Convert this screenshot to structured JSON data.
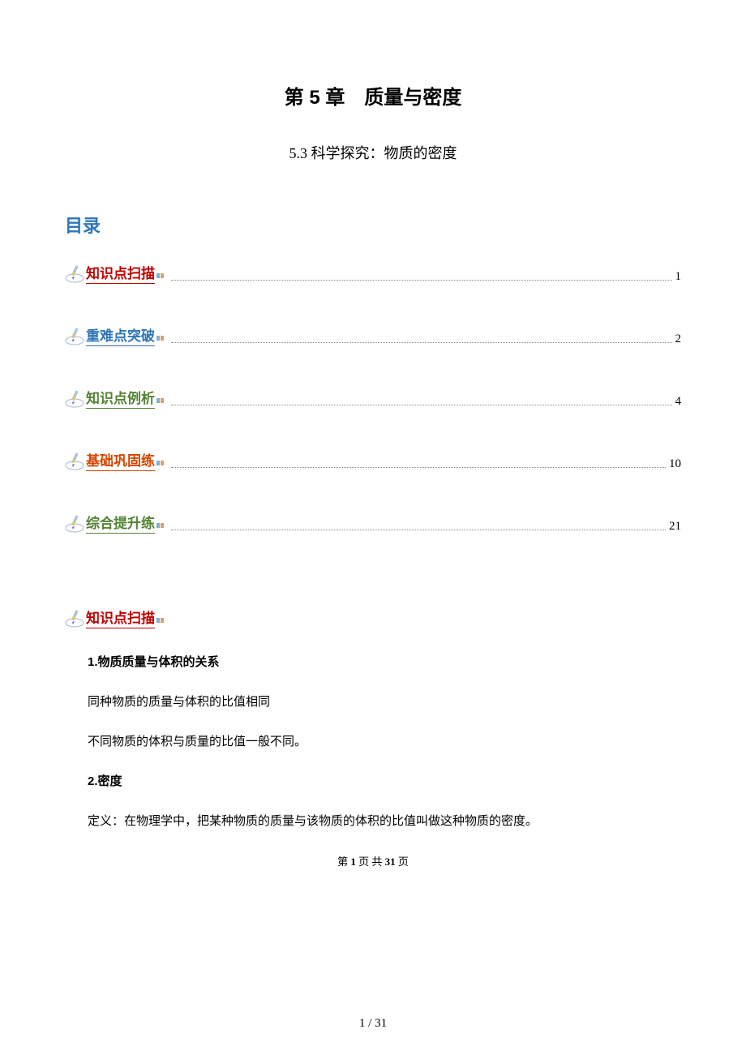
{
  "chapter_title": "第 5 章　质量与密度",
  "section_subtitle": "5.3 科学探究：物质的密度",
  "toc_header": "目录",
  "toc": [
    {
      "label": "知识点扫描",
      "page": "1",
      "color": "label-red"
    },
    {
      "label": "重难点突破",
      "page": "2",
      "color": "label-blue"
    },
    {
      "label": "知识点例析",
      "page": "4",
      "color": "label-green"
    },
    {
      "label": "基础巩固练",
      "page": "10",
      "color": "label-orange"
    },
    {
      "label": "综合提升练",
      "page": "21",
      "color": "label-green"
    }
  ],
  "content_heading": {
    "label": "知识点扫描",
    "color": "label-red"
  },
  "paragraphs": [
    {
      "type": "heading",
      "text": "1.物质质量与体积的关系"
    },
    {
      "type": "body",
      "text": "同种物质的质量与体积的比值相同"
    },
    {
      "type": "body",
      "text": "不同物质的体积与质量的比值一般不同。"
    },
    {
      "type": "heading",
      "text": "2.密度"
    },
    {
      "type": "body",
      "text": "定义：在物理学中，把某种物质的质量与该物质的体积的比值叫做这种物质的密度。"
    }
  ],
  "footer": {
    "prefix": "第 ",
    "current": "1",
    "mid": " 页 共 ",
    "total": "31",
    "suffix": " 页"
  },
  "bottom_counter": "1 / 31",
  "icon_colors": {
    "pen_body": "#b0c4d8",
    "pen_tip": "#6a5acd",
    "pen_band": "#f2c94c",
    "decor1": "#7fb0d6",
    "decor2": "#d6a36a"
  }
}
